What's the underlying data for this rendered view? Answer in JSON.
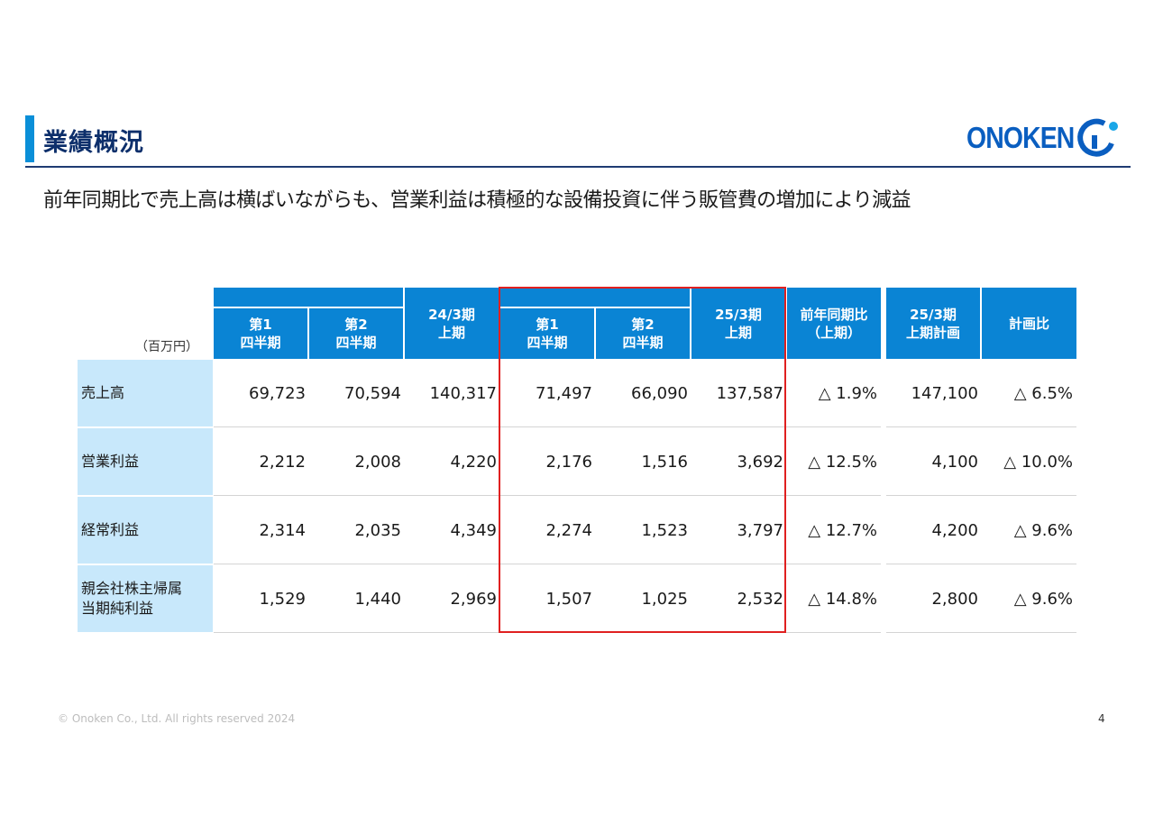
{
  "header": {
    "title": "業績概況",
    "logo_text": "ONOKEN",
    "subtitle": "前年同期比で売上高は横ばいながらも、営業利益は積極的な設備投資に伴う販管費の増加により減益"
  },
  "table": {
    "unit": "（百万円）",
    "columns": {
      "q1a": [
        "第1",
        "四半期"
      ],
      "q2a": [
        "第2",
        "四半期"
      ],
      "h1a": [
        "24/3期",
        "上期"
      ],
      "q1b": [
        "第1",
        "四半期"
      ],
      "q2b": [
        "第2",
        "四半期"
      ],
      "h1b": [
        "25/3期",
        "上期"
      ],
      "yoy": [
        "前年同期比",
        "（上期）"
      ],
      "plan": [
        "25/3期",
        "上期計画"
      ],
      "vsplan": [
        "計画比"
      ]
    },
    "rows": [
      {
        "label": [
          "売上高"
        ],
        "values": [
          "69,723",
          "70,594",
          "140,317",
          "71,497",
          "66,090",
          "137,587",
          "△ 1.9%",
          "147,100",
          "△ 6.5%"
        ]
      },
      {
        "label": [
          "営業利益"
        ],
        "values": [
          "2,212",
          "2,008",
          "4,220",
          "2,176",
          "1,516",
          "3,692",
          "△ 12.5%",
          "4,100",
          "△ 10.0%"
        ]
      },
      {
        "label": [
          "経常利益"
        ],
        "values": [
          "2,314",
          "2,035",
          "4,349",
          "2,274",
          "1,523",
          "3,797",
          "△ 12.7%",
          "4,200",
          "△ 9.6%"
        ]
      },
      {
        "label": [
          "親会社株主帰属",
          "当期純利益"
        ],
        "values": [
          "1,529",
          "1,440",
          "2,969",
          "1,507",
          "1,025",
          "2,532",
          "△ 14.8%",
          "2,800",
          "△ 9.6%"
        ]
      }
    ]
  },
  "footer": {
    "copyright": "© Onoken Co., Ltd. All rights reserved 2024",
    "page_number": "4"
  },
  "colors": {
    "accent": "#0a84d4",
    "label_bg": "#c8e8fb",
    "title": "#0d2f6b",
    "highlight": "#e02020"
  }
}
